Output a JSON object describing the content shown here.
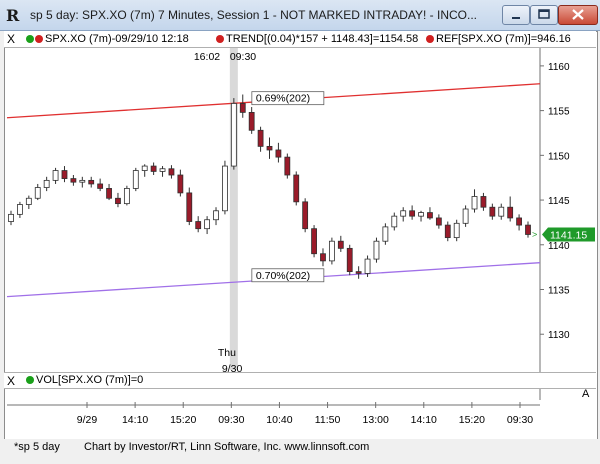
{
  "window": {
    "title": "sp 5 day: SPX.XO (7m) 7 Minutes, Session 1 - NOT MARKED INTRADAY! - INCO...",
    "icon": "R"
  },
  "legend": {
    "symbol": "SPX.XO (7m)-09/29/10 12:18",
    "trend": "TREND[(0.04)*157 + 1148.43]=1154.58",
    "ref": "REF[SPX.XO (7m)]=946.16",
    "close_label": "X",
    "colors": {
      "green": "#1aa01a",
      "red": "#d02020"
    }
  },
  "volume": {
    "label": "VOL[SPX.XO (7m)]=0",
    "close_label": "X",
    "marker": "A"
  },
  "status": {
    "tab": "*sp 5 day",
    "credit": "Chart by Investor/RT, Linn Software, Inc. www.linnsoft.com"
  },
  "chart_data": {
    "type": "candlestick",
    "ylim": [
      1126,
      1162
    ],
    "y_ticks": [
      1160,
      1155,
      1150,
      1145,
      1140,
      1135,
      1130
    ],
    "x_tick_labels": [
      "9/29",
      "14:10",
      "15:20",
      "09:30",
      "10:40",
      "11:50",
      "13:00",
      "14:10",
      "15:20",
      "09:30"
    ],
    "current_price": "1141.15",
    "cursor": {
      "time": "16:02",
      "time2": "09:30",
      "day": "Thu",
      "date_label": "9/30"
    },
    "channel_labels": {
      "upper": "0.69%(202)",
      "lower": "0.70%(202)"
    },
    "trend_lines": [
      {
        "name": "upper",
        "color": "#e03030",
        "start": 1154.2,
        "end": 1158.0
      },
      {
        "name": "lower",
        "color": "#a070e8",
        "start": 1134.2,
        "end": 1138.0
      }
    ],
    "candles": [
      [
        1142.6,
        1143.8,
        1142.2,
        1143.4
      ],
      [
        1143.4,
        1144.8,
        1143.0,
        1144.5
      ],
      [
        1144.5,
        1145.5,
        1144.0,
        1145.2
      ],
      [
        1145.2,
        1146.8,
        1145.0,
        1146.4
      ],
      [
        1146.4,
        1147.6,
        1146.0,
        1147.2
      ],
      [
        1147.2,
        1148.6,
        1146.8,
        1148.3
      ],
      [
        1148.3,
        1148.8,
        1147.0,
        1147.4
      ],
      [
        1147.4,
        1147.8,
        1146.6,
        1147.0
      ],
      [
        1147.0,
        1147.6,
        1146.4,
        1147.2
      ],
      [
        1147.2,
        1147.6,
        1146.4,
        1146.8
      ],
      [
        1146.8,
        1147.4,
        1146.0,
        1146.3
      ],
      [
        1146.3,
        1146.8,
        1145.0,
        1145.2
      ],
      [
        1145.2,
        1145.8,
        1144.2,
        1144.6
      ],
      [
        1144.6,
        1146.6,
        1144.4,
        1146.3
      ],
      [
        1146.3,
        1148.6,
        1146.0,
        1148.3
      ],
      [
        1148.3,
        1149.0,
        1147.6,
        1148.8
      ],
      [
        1148.8,
        1149.2,
        1147.8,
        1148.2
      ],
      [
        1148.2,
        1148.8,
        1147.6,
        1148.5
      ],
      [
        1148.5,
        1148.9,
        1147.4,
        1147.8
      ],
      [
        1147.8,
        1148.4,
        1145.4,
        1145.8
      ],
      [
        1145.8,
        1146.4,
        1142.2,
        1142.6
      ],
      [
        1142.6,
        1143.2,
        1141.4,
        1141.8
      ],
      [
        1141.8,
        1143.2,
        1141.2,
        1142.8
      ],
      [
        1142.8,
        1144.2,
        1142.2,
        1143.8
      ],
      [
        1143.8,
        1149.4,
        1143.4,
        1148.8
      ],
      [
        1148.8,
        1156.4,
        1148.4,
        1155.8
      ],
      [
        1155.8,
        1156.8,
        1154.2,
        1154.8
      ],
      [
        1154.8,
        1155.4,
        1152.4,
        1152.8
      ],
      [
        1152.8,
        1153.2,
        1150.4,
        1151.0
      ],
      [
        1151.0,
        1152.0,
        1149.6,
        1150.6
      ],
      [
        1150.6,
        1151.4,
        1149.2,
        1149.8
      ],
      [
        1149.8,
        1150.2,
        1147.4,
        1147.8
      ],
      [
        1147.8,
        1148.2,
        1144.4,
        1144.8
      ],
      [
        1144.8,
        1145.2,
        1141.4,
        1141.8
      ],
      [
        1141.8,
        1142.2,
        1138.6,
        1139.0
      ],
      [
        1139.0,
        1139.6,
        1137.6,
        1138.2
      ],
      [
        1138.2,
        1140.8,
        1137.8,
        1140.4
      ],
      [
        1140.4,
        1141.0,
        1139.2,
        1139.6
      ],
      [
        1139.6,
        1140.0,
        1136.6,
        1137.0
      ],
      [
        1137.0,
        1137.6,
        1136.2,
        1136.8
      ],
      [
        1136.8,
        1138.8,
        1136.4,
        1138.4
      ],
      [
        1138.4,
        1140.8,
        1138.0,
        1140.4
      ],
      [
        1140.4,
        1142.4,
        1140.0,
        1142.0
      ],
      [
        1142.0,
        1143.6,
        1141.6,
        1143.2
      ],
      [
        1143.2,
        1144.2,
        1142.6,
        1143.8
      ],
      [
        1143.8,
        1144.4,
        1142.8,
        1143.2
      ],
      [
        1143.2,
        1143.8,
        1142.6,
        1143.6
      ],
      [
        1143.6,
        1144.2,
        1142.8,
        1143.0
      ],
      [
        1143.0,
        1143.4,
        1141.8,
        1142.2
      ],
      [
        1142.2,
        1142.6,
        1140.4,
        1140.8
      ],
      [
        1140.8,
        1142.8,
        1140.4,
        1142.4
      ],
      [
        1142.4,
        1144.4,
        1142.0,
        1144.0
      ],
      [
        1144.0,
        1146.2,
        1143.6,
        1145.4
      ],
      [
        1145.4,
        1145.8,
        1143.8,
        1144.2
      ],
      [
        1144.2,
        1144.6,
        1142.8,
        1143.2
      ],
      [
        1143.2,
        1144.6,
        1142.8,
        1144.2
      ],
      [
        1144.2,
        1145.4,
        1142.6,
        1143.0
      ],
      [
        1143.0,
        1143.4,
        1141.6,
        1142.2
      ],
      [
        1142.2,
        1142.6,
        1140.8,
        1141.15
      ]
    ]
  }
}
